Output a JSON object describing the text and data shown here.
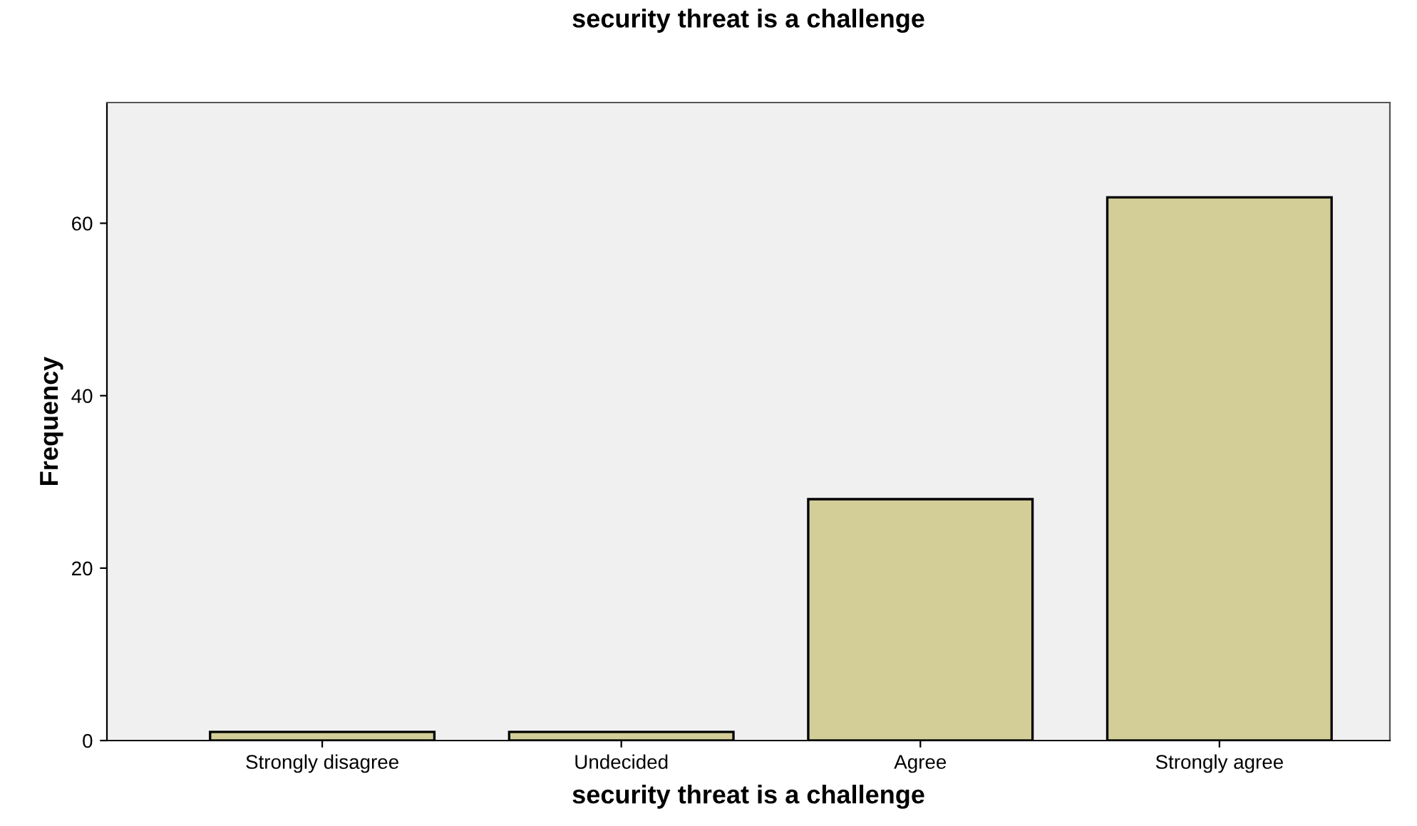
{
  "chart_data": {
    "type": "bar",
    "title": "security threat is a challenge",
    "xlabel": "security threat is a challenge",
    "ylabel": "Frequency",
    "categories": [
      "Strongly disagree",
      "Undecided",
      "Agree",
      "Strongly agree"
    ],
    "values": [
      1,
      1,
      28,
      63
    ],
    "color": "#d3ce97",
    "ylim": [
      0,
      74
    ],
    "yticks": [
      0,
      20,
      40,
      60
    ],
    "grid": false
  }
}
